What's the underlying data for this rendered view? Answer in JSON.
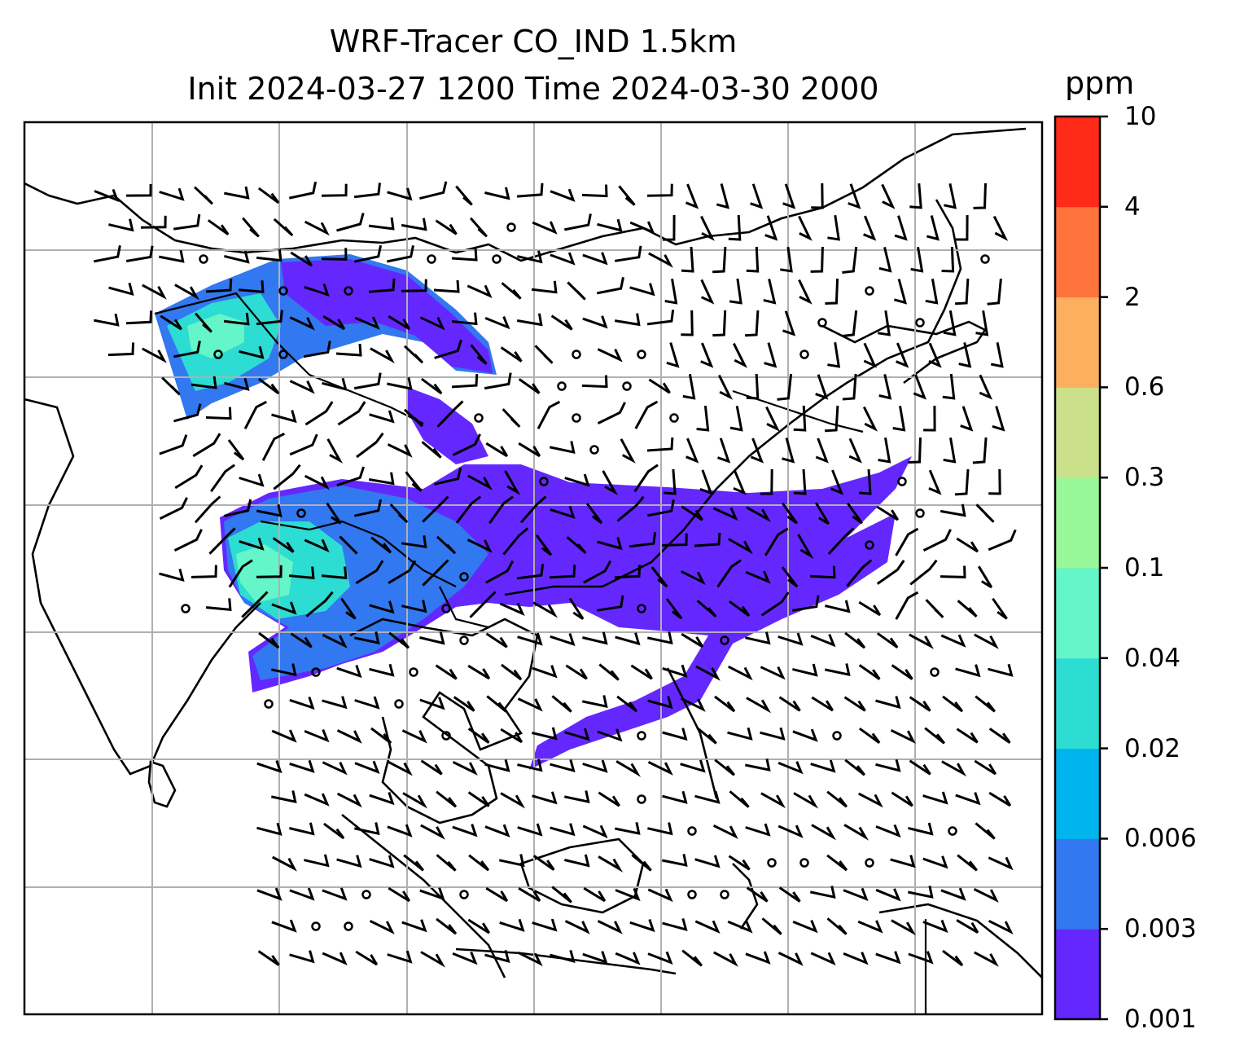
{
  "title": {
    "line1": "WRF-Tracer CO_IND 1.5km",
    "line2": "Init 2024-03-27 1200 Time 2024-03-30 2000"
  },
  "colorbar": {
    "unit": "ppm",
    "levels": [
      "0.001",
      "0.003",
      "0.006",
      "0.02",
      "0.04",
      "0.1",
      "0.3",
      "0.6",
      "2",
      "4",
      "10"
    ],
    "colors": [
      "#6428ff",
      "#3278f0",
      "#00b4ee",
      "#2ddcd2",
      "#64f5c8",
      "#98f798",
      "#cbe08a",
      "#fbaf5f",
      "#ff733c",
      "#ff2b18"
    ]
  },
  "map": {
    "gridlines": true,
    "field_color_levels": [
      "#6428ff",
      "#3278f0",
      "#00b4ee",
      "#2ddcd2",
      "#64f5c8"
    ],
    "land_outline": "#000000",
    "grid_color": "#b0b0b0",
    "overlay": "wind-barbs"
  }
}
